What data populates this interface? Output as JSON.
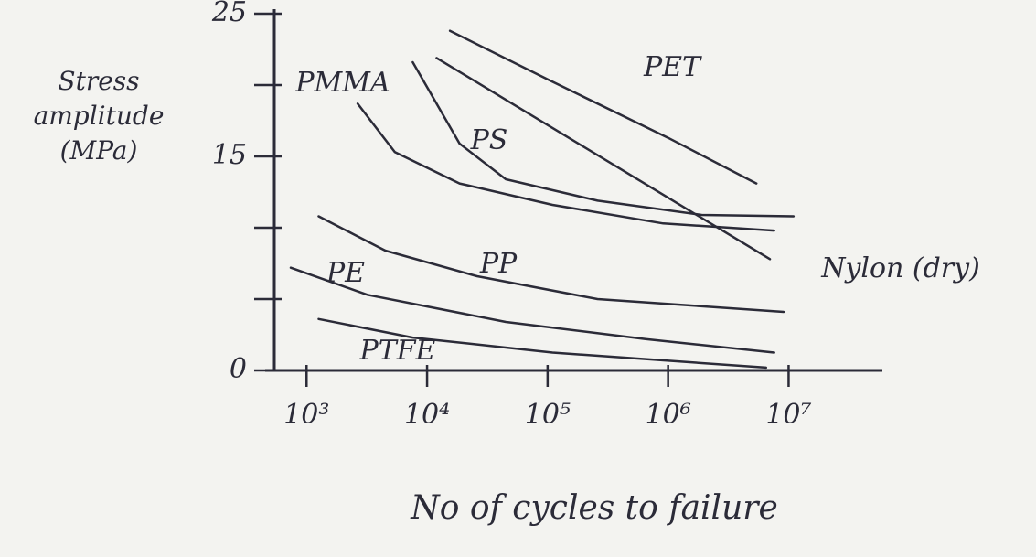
{
  "chart_data": {
    "type": "line",
    "y_label": "Stress amplitude (MPa)",
    "x_label": "No of cycles to failure",
    "color": "#2b2b38",
    "xscale": "log",
    "xlim": [
      540,
      60000000
    ],
    "ylim": [
      0,
      25
    ],
    "xticks": [
      {
        "value": 1000,
        "label": "10³"
      },
      {
        "value": 10000,
        "label": "10⁴"
      },
      {
        "value": 100000,
        "label": "10⁵"
      },
      {
        "value": 1000000,
        "label": "10⁶"
      },
      {
        "value": 10000000,
        "label": "10⁷"
      }
    ],
    "yticks": [
      0,
      {
        "value": 5,
        "label": null
      },
      {
        "value": 10,
        "label": null
      },
      15,
      {
        "value": 20,
        "label": null
      },
      25
    ],
    "series": [
      {
        "name": "PMMA",
        "x": [
          2650,
          5400,
          18600,
          110000,
          910000,
          7600000
        ],
        "values": [
          18.7,
          15.3,
          13.1,
          11.6,
          10.3,
          9.8
        ]
      },
      {
        "name": "PS",
        "x": [
          7600,
          18600,
          45000,
          260000,
          1900000,
          11000000
        ],
        "values": [
          21.6,
          15.9,
          13.4,
          11.9,
          10.9,
          10.8
        ]
      },
      {
        "name": "PET",
        "x": [
          15500,
          100000,
          1000000,
          5400000
        ],
        "values": [
          23.8,
          20.4,
          16.3,
          13.1
        ]
      },
      {
        "name": "Nylon (dry)",
        "x": [
          12000,
          100000,
          1000000,
          7000000
        ],
        "values": [
          21.9,
          17.2,
          12.1,
          7.8
        ]
      },
      {
        "name": "PP",
        "x": [
          1260,
          4500,
          26000,
          260000,
          9100000
        ],
        "values": [
          10.8,
          8.4,
          6.6,
          5.0,
          4.1
        ]
      },
      {
        "name": "PE",
        "x": [
          740,
          3200,
          45000,
          650000,
          7600000
        ],
        "values": [
          7.2,
          5.3,
          3.4,
          2.2,
          1.25
        ]
      },
      {
        "name": "PTFE",
        "x": [
          1260,
          7600,
          110000,
          6500000
        ],
        "values": [
          3.6,
          2.3,
          1.25,
          0.2
        ]
      }
    ]
  }
}
